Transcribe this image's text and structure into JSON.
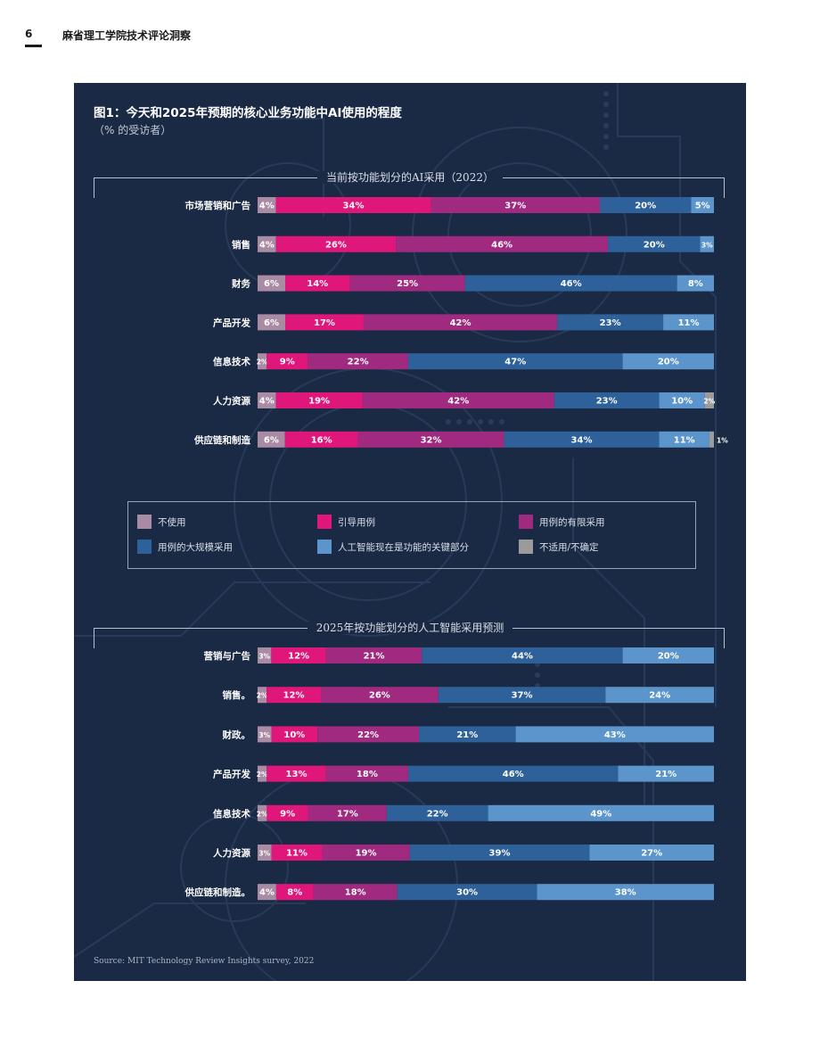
{
  "page": {
    "number": "6",
    "running_header": "麻省理工学院技术评论洞察"
  },
  "figure": {
    "title": "图1：今天和2025年预期的核心业务功能中AI使用的程度",
    "subtitle": "（% 的受访者）",
    "source": "Source: MIT Technology Review Insights survey, 2022"
  },
  "colors": {
    "panel_bg": "#1b2a44",
    "not_use": "#a98ba4",
    "pilot": "#e0177a",
    "limited": "#a02a80",
    "large_scale": "#2e609a",
    "critical": "#5b95cc",
    "na": "#9b9b9b"
  },
  "legend": {
    "items": [
      {
        "key": "not_use",
        "label": "不使用"
      },
      {
        "key": "pilot",
        "label": "引导用例"
      },
      {
        "key": "limited",
        "label": "用例的有限采用"
      },
      {
        "key": "large_scale",
        "label": "用例的大规模采用"
      },
      {
        "key": "critical",
        "label": "人工智能现在是功能的关键部分"
      },
      {
        "key": "na",
        "label": "不适用/不确定"
      }
    ]
  },
  "chart_data": [
    {
      "type": "bar",
      "orientation": "horizontal-stacked",
      "title": "当前按功能划分的AI采用（2022）",
      "xlim": [
        0,
        100
      ],
      "categories": [
        "市场营销和广告",
        "销售",
        "财务",
        "产品开发",
        "信息技术",
        "人力资源",
        "供应链和制造"
      ],
      "series": [
        {
          "name": "不使用",
          "key": "not_use",
          "values": [
            4,
            4,
            6,
            6,
            2,
            4,
            6
          ]
        },
        {
          "name": "引导用例",
          "key": "pilot",
          "values": [
            34,
            26,
            14,
            17,
            9,
            19,
            16
          ]
        },
        {
          "name": "用例的有限采用",
          "key": "limited",
          "values": [
            37,
            46,
            25,
            42,
            22,
            42,
            32
          ]
        },
        {
          "name": "用例的大规模采用",
          "key": "large_scale",
          "values": [
            20,
            20,
            46,
            23,
            47,
            23,
            34
          ]
        },
        {
          "name": "人工智能现在是功能的关键部分",
          "key": "critical",
          "values": [
            5,
            3,
            8,
            11,
            20,
            10,
            11
          ]
        },
        {
          "name": "不适用/不确定",
          "key": "na",
          "values": [
            0,
            0,
            0,
            0,
            0,
            2,
            1
          ]
        }
      ]
    },
    {
      "type": "bar",
      "orientation": "horizontal-stacked",
      "title": "2025年按功能划分的人工智能采用预测",
      "xlim": [
        0,
        100
      ],
      "categories": [
        "营销与广告",
        "销售。",
        "财政。",
        "产品开发",
        "信息技术",
        "人力资源",
        "供应链和制造。"
      ],
      "series": [
        {
          "name": "不使用",
          "key": "not_use",
          "values": [
            3,
            2,
            3,
            2,
            2,
            3,
            4
          ]
        },
        {
          "name": "引导用例",
          "key": "pilot",
          "values": [
            12,
            12,
            10,
            13,
            9,
            11,
            8
          ]
        },
        {
          "name": "用例的有限采用",
          "key": "limited",
          "values": [
            21,
            26,
            22,
            18,
            17,
            19,
            18
          ]
        },
        {
          "name": "用例的大规模采用",
          "key": "large_scale",
          "values": [
            44,
            37,
            21,
            46,
            22,
            39,
            30
          ]
        },
        {
          "name": "人工智能现在是功能的关键部分",
          "key": "critical",
          "values": [
            20,
            24,
            43,
            21,
            49,
            27,
            38
          ]
        },
        {
          "name": "不适用/不确定",
          "key": "na",
          "values": [
            0,
            0,
            0,
            0,
            0,
            0,
            0
          ]
        }
      ]
    }
  ]
}
